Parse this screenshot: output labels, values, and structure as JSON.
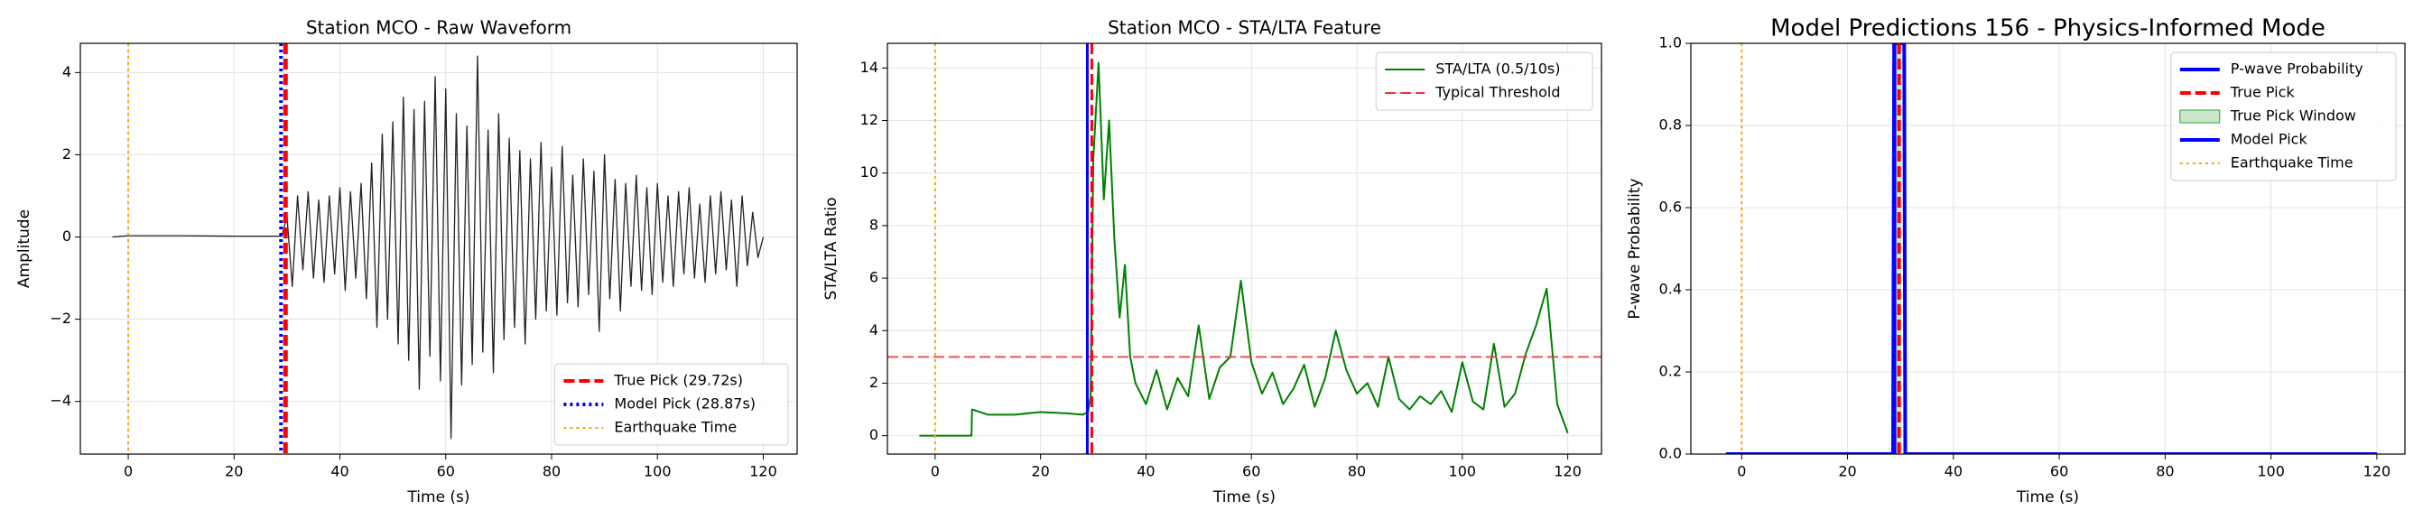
{
  "chart_data": [
    {
      "type": "line",
      "title": "Station MCO - Raw Waveform",
      "xlabel": "Time (s)",
      "ylabel": "Amplitude",
      "xlim": [
        -9.05,
        126.4
      ],
      "ylim": [
        -5.28,
        4.71
      ],
      "grid": true,
      "legend": "lower right",
      "xticks": [
        0,
        20,
        40,
        60,
        80,
        100,
        120
      ],
      "yticks": [
        {
          "value": -4,
          "label": "−4"
        },
        {
          "value": -2,
          "label": "−2"
        },
        0,
        2,
        4
      ],
      "x": [
        -3,
        0,
        10,
        20,
        29,
        30,
        31,
        32,
        33,
        34,
        35,
        36,
        37,
        38,
        39,
        40,
        41,
        42,
        43,
        44,
        45,
        46,
        47,
        48,
        49,
        50,
        51,
        52,
        53,
        54,
        55,
        56,
        57,
        58,
        59,
        60,
        61,
        62,
        63,
        64,
        65,
        66,
        67,
        68,
        69,
        70,
        71,
        72,
        73,
        74,
        75,
        76,
        77,
        78,
        79,
        80,
        81,
        82,
        83,
        84,
        85,
        86,
        87,
        88,
        89,
        90,
        91,
        92,
        93,
        94,
        95,
        96,
        97,
        98,
        99,
        100,
        101,
        102,
        103,
        104,
        105,
        106,
        107,
        108,
        109,
        110,
        111,
        112,
        113,
        114,
        115,
        116,
        117,
        118,
        119,
        120
      ],
      "series": [
        {
          "color": "#222222",
          "width": 1.3,
          "values": [
            0,
            0.03,
            0.03,
            0.02,
            0.02,
            0.5,
            -1.2,
            1.0,
            -0.8,
            1.1,
            -1.0,
            0.9,
            -1.1,
            1.0,
            -0.9,
            1.2,
            -1.3,
            1.1,
            -1.0,
            1.3,
            -1.5,
            1.8,
            -2.2,
            2.5,
            -2.0,
            2.8,
            -2.6,
            3.4,
            -3.0,
            3.1,
            -3.7,
            3.3,
            -2.9,
            3.9,
            -3.5,
            3.6,
            -4.9,
            3.0,
            -3.6,
            2.7,
            -3.1,
            4.4,
            -2.8,
            2.6,
            -3.3,
            3.0,
            -2.5,
            2.4,
            -2.2,
            2.1,
            -2.6,
            1.9,
            -2.0,
            2.3,
            -1.8,
            1.7,
            -1.9,
            2.2,
            -1.6,
            1.5,
            -1.7,
            1.9,
            -1.4,
            1.6,
            -2.3,
            2.0,
            -1.5,
            1.4,
            -1.8,
            1.3,
            -1.2,
            1.5,
            -1.3,
            1.2,
            -1.4,
            1.3,
            -1.1,
            1.0,
            -1.2,
            1.1,
            -0.9,
            1.2,
            -1.0,
            0.8,
            -1.1,
            1.0,
            -0.9,
            1.1,
            -0.8,
            0.9,
            -1.2,
            1.0,
            -0.7,
            0.6,
            -0.5,
            0
          ]
        }
      ],
      "vlines": [
        {
          "name": "True Pick (29.72s)",
          "x": 29.72,
          "color": "#ff0000",
          "style": "dashed",
          "width": 5
        },
        {
          "name": "Model Pick (28.87s)",
          "x": 28.87,
          "color": "#0000ff",
          "style": "dotted",
          "width": 4
        },
        {
          "name": "Earthquake Time",
          "x": 0,
          "color": "#ffa500",
          "style": "dotted",
          "width": 2
        }
      ]
    },
    {
      "type": "line",
      "title": "Station MCO - STA/LTA Feature",
      "xlabel": "Time (s)",
      "ylabel": "STA/LTA Ratio",
      "xlim": [
        -9.05,
        126.4
      ],
      "ylim": [
        -0.7,
        14.94
      ],
      "grid": true,
      "legend": "upper right",
      "xticks": [
        0,
        20,
        40,
        60,
        80,
        100,
        120
      ],
      "yticks": [
        0,
        2,
        4,
        6,
        8,
        10,
        12,
        14
      ],
      "x": [
        -3,
        6.9,
        7,
        10,
        15,
        20,
        25,
        28,
        29,
        29.5,
        30,
        31,
        32,
        33,
        34,
        35,
        36,
        37,
        38,
        40,
        42,
        44,
        46,
        48,
        50,
        52,
        54,
        56,
        58,
        60,
        62,
        64,
        66,
        68,
        70,
        72,
        74,
        76,
        78,
        80,
        82,
        84,
        86,
        88,
        90,
        92,
        94,
        96,
        98,
        100,
        102,
        104,
        106,
        108,
        110,
        112,
        114,
        116,
        118,
        120
      ],
      "series": [
        {
          "name": "STA/LTA (0.5/10s)",
          "color": "#008000",
          "width": 2,
          "values": [
            0,
            0,
            1.0,
            0.8,
            0.8,
            0.9,
            0.85,
            0.8,
            0.9,
            1.5,
            10.5,
            14.2,
            9.0,
            12.0,
            7.5,
            4.5,
            6.5,
            3.0,
            2.0,
            1.2,
            2.5,
            1.0,
            2.2,
            1.5,
            4.2,
            1.4,
            2.6,
            3.0,
            5.9,
            2.8,
            1.6,
            2.4,
            1.2,
            1.8,
            2.7,
            1.1,
            2.2,
            4.0,
            2.5,
            1.6,
            2.0,
            1.1,
            3.0,
            1.4,
            1.0,
            1.5,
            1.2,
            1.7,
            0.9,
            2.8,
            1.3,
            1.0,
            3.5,
            1.1,
            1.6,
            3.1,
            4.2,
            5.6,
            1.2,
            0.1
          ]
        }
      ],
      "hlines": [
        {
          "name": "Typical Threshold",
          "y": 3,
          "color": "#ee3333",
          "style": "dashed",
          "width": 2
        }
      ],
      "vlines": [
        {
          "x": 29.72,
          "color": "#ff0000",
          "style": "dashed",
          "width": 3
        },
        {
          "x": 28.87,
          "color": "#0000ff",
          "style": "solid",
          "width": 3
        },
        {
          "x": 0,
          "color": "#ffa500",
          "style": "dotted",
          "width": 2
        }
      ]
    },
    {
      "type": "line",
      "title": "Model Predictions 156 - Physics-Informed Mode",
      "xlabel": "Time (s)",
      "ylabel": "P-wave Probability",
      "xlim": [
        -9.6,
        125.3
      ],
      "ylim": [
        0,
        1
      ],
      "grid": true,
      "legend": "upper right",
      "xticks": [
        0,
        20,
        40,
        60,
        80,
        100,
        120
      ],
      "yticks": [
        {
          "value": 0,
          "label": "0.0"
        },
        0.2,
        0.4,
        0.6,
        0.8,
        {
          "value": 1,
          "label": "1.0"
        }
      ],
      "x": [
        -3,
        28.6,
        28.8,
        30.7,
        30.9,
        120
      ],
      "series": [
        {
          "name": "P-wave Probability",
          "color": "#0000ff",
          "width": 4,
          "values": [
            0,
            0,
            1,
            1,
            0,
            0
          ]
        }
      ],
      "vlines": [
        {
          "name": "True Pick",
          "x": 29.72,
          "color": "#ff0000",
          "style": "dashed",
          "width": 4
        },
        {
          "name": "True Pick Window",
          "x": [
            29.22,
            30.22
          ],
          "color": "#2ca02c"
        },
        {
          "name": "Model Pick",
          "x": 28.87,
          "color": "#0000ff",
          "style": "solid",
          "width": 4
        },
        {
          "name": "Earthquake Time",
          "x": 0,
          "color": "#ffa500",
          "style": "dotted",
          "width": 2
        }
      ]
    }
  ]
}
